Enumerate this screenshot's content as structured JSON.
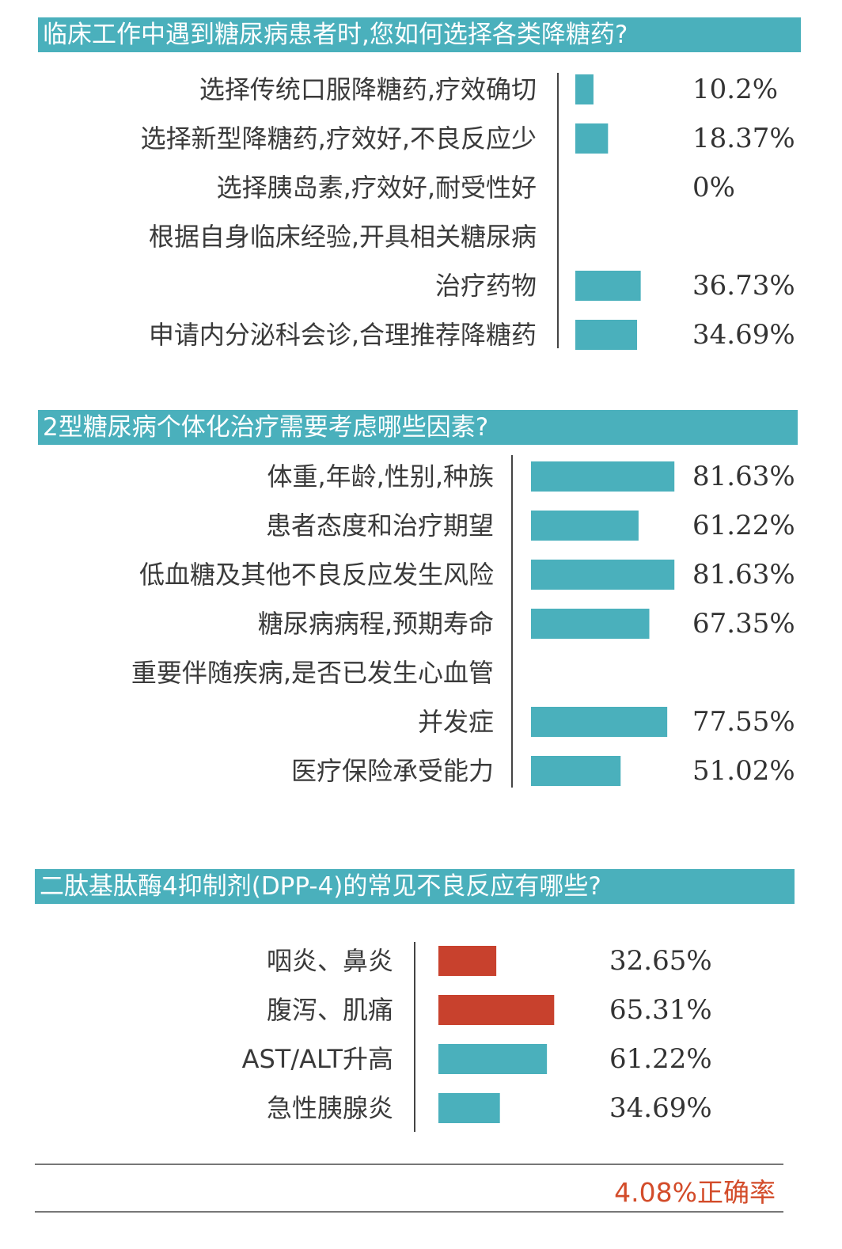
{
  "colors": {
    "header_bg": "#4ab0bc",
    "bar_teal": "#4ab0bc",
    "bar_red": "#c8412d",
    "footer_text": "#d34c2a"
  },
  "chart_data": [
    {
      "type": "bar",
      "orientation": "horizontal",
      "title": "临床工作中遇到糖尿病患者时,您如何选择各类降糖药?",
      "unit": "%",
      "categories": [
        [
          "选择传统口服降糖药,疗效确切"
        ],
        [
          "选择新型降糖药,疗效好,不良反应少"
        ],
        [
          "选择胰岛素,疗效好,耐受性好"
        ],
        [
          "根据自身临床经验,开具相关糖尿病",
          "治疗药物"
        ],
        [
          "申请内分泌科会诊,合理推荐降糖药"
        ]
      ],
      "values": [
        10.2,
        18.37,
        0,
        36.73,
        34.69
      ],
      "value_labels": [
        "10.2%",
        "18.37%",
        "0%",
        "36.73%",
        "34.69%"
      ]
    },
    {
      "type": "bar",
      "orientation": "horizontal",
      "title": "2型糖尿病个体化治疗需要考虑哪些因素?",
      "unit": "%",
      "categories": [
        [
          "体重,年龄,性别,种族"
        ],
        [
          "患者态度和治疗期望"
        ],
        [
          "低血糖及其他不良反应发生风险"
        ],
        [
          "糖尿病病程,预期寿命"
        ],
        [
          "重要伴随疾病,是否已发生心血管",
          "并发症"
        ],
        [
          "医疗保险承受能力"
        ]
      ],
      "values": [
        81.63,
        61.22,
        81.63,
        67.35,
        77.55,
        51.02
      ],
      "value_labels": [
        "81.63%",
        "61.22%",
        "81.63%",
        "67.35%",
        "77.55%",
        "51.02%"
      ]
    },
    {
      "type": "bar",
      "orientation": "horizontal",
      "title": "二肽基肽酶4抑制剂(DPP-4)的常见不良反应有哪些?",
      "unit": "%",
      "categories": [
        [
          "咽炎、鼻炎"
        ],
        [
          "腹泻、肌痛"
        ],
        [
          "AST/ALT升高"
        ],
        [
          "急性胰腺炎"
        ]
      ],
      "values": [
        32.65,
        65.31,
        61.22,
        34.69
      ],
      "value_labels": [
        "32.65%",
        "65.31%",
        "61.22%",
        "34.69%"
      ],
      "bar_colors": [
        "#c8412d",
        "#c8412d",
        "#4ab0bc",
        "#4ab0bc"
      ]
    }
  ],
  "footer": {
    "text": "4.08%正确率"
  }
}
